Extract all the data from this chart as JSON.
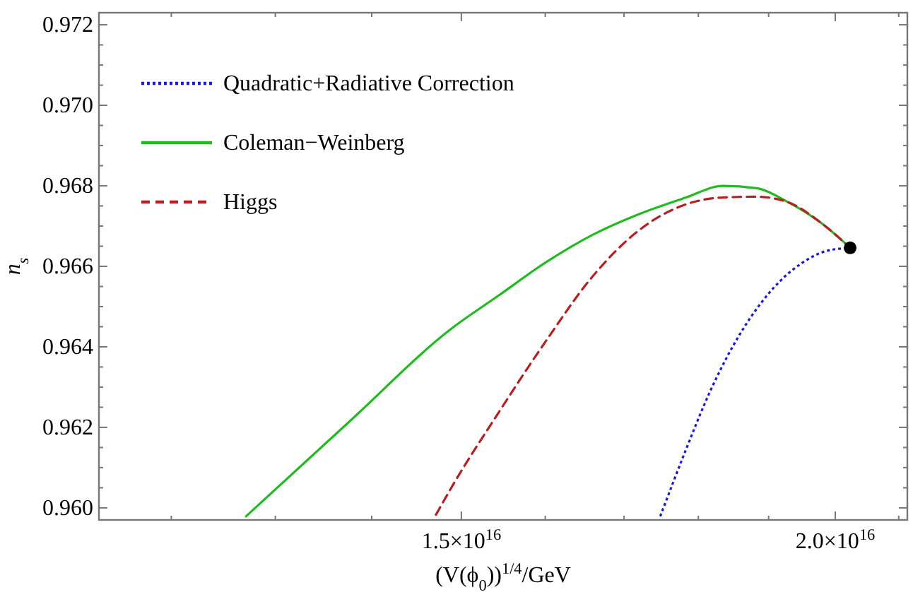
{
  "chart_data": {
    "type": "line",
    "xlabel": "(V(ϕ$_{0}$))$^{1/4}$/GeV",
    "ylabel": "n$_{s}$",
    "log": "x",
    "legend": "top left",
    "grid": false,
    "xlim": [
      1.135e+16,
      2.114e+16
    ],
    "xticks": [
      {
        "value": 1.2e+16,
        "label": null
      },
      {
        "value": 1.3e+16,
        "label": null
      },
      {
        "value": 1.4e+16,
        "label": null
      },
      {
        "value": 1.5e+16,
        "label": "1.5×10$^{16}$"
      },
      {
        "value": 1.6e+16,
        "label": null
      },
      {
        "value": 1.7e+16,
        "label": null
      },
      {
        "value": 1.8e+16,
        "label": null
      },
      {
        "value": 1.9e+16,
        "label": null
      },
      {
        "value": 2e+16,
        "label": "2.0×10$^{16}$"
      },
      {
        "value": 2.1e+16,
        "label": null
      }
    ],
    "ylim": [
      0.9597,
      0.9723
    ],
    "yticks": [
      {
        "value": 0.96,
        "label": "0.960"
      },
      {
        "value": 0.9605,
        "label": null
      },
      {
        "value": 0.961,
        "label": null
      },
      {
        "value": 0.9615,
        "label": null
      },
      {
        "value": 0.962,
        "label": "0.962"
      },
      {
        "value": 0.9625,
        "label": null
      },
      {
        "value": 0.963,
        "label": null
      },
      {
        "value": 0.9635,
        "label": null
      },
      {
        "value": 0.964,
        "label": "0.964"
      },
      {
        "value": 0.9645,
        "label": null
      },
      {
        "value": 0.965,
        "label": null
      },
      {
        "value": 0.9655,
        "label": null
      },
      {
        "value": 0.966,
        "label": "0.966"
      },
      {
        "value": 0.9665,
        "label": null
      },
      {
        "value": 0.967,
        "label": null
      },
      {
        "value": 0.9675,
        "label": null
      },
      {
        "value": 0.968,
        "label": "0.968"
      },
      {
        "value": 0.9685,
        "label": null
      },
      {
        "value": 0.969,
        "label": null
      },
      {
        "value": 0.9695,
        "label": null
      },
      {
        "value": 0.97,
        "label": "0.970"
      },
      {
        "value": 0.9705,
        "label": null
      },
      {
        "value": 0.971,
        "label": null
      },
      {
        "value": 0.9715,
        "label": null
      },
      {
        "value": 0.972,
        "label": "0.972"
      }
    ],
    "series": [
      {
        "name": "Quadratic+Radiative Correction",
        "color": "#1a1acc",
        "line_style": "dotted",
        "x": [
          1.748e+16,
          1.783e+16,
          1.815e+16,
          1.848e+16,
          1.882e+16,
          1.916e+16,
          1.95e+16,
          1.986e+16,
          2.023e+16
        ],
        "values": [
          0.95979,
          0.96145,
          0.96284,
          0.964,
          0.96493,
          0.96562,
          0.96609,
          0.96638,
          0.96646
        ]
      },
      {
        "name": "Coleman−Weinberg",
        "color": "#22b922",
        "line_style": "solid",
        "x": [
          1.271e+16,
          1.376e+16,
          1.489e+16,
          1.544e+16,
          1.6e+16,
          1.659e+16,
          1.72e+16,
          1.783e+16,
          1.834e+16,
          1.882e+16,
          1.929e+16,
          1.979e+16,
          2.023e+16
        ],
        "values": [
          0.95979,
          0.96214,
          0.96446,
          0.96528,
          0.96609,
          0.96678,
          0.9673,
          0.96771,
          0.968,
          0.96794,
          0.96759,
          0.96707,
          0.96646
        ]
      },
      {
        "name": "Higgs",
        "color": "#b22222",
        "line_style": "dashed",
        "x": [
          1.471e+16,
          1.489e+16,
          1.544e+16,
          1.6e+16,
          1.659e+16,
          1.72e+16,
          1.783e+16,
          1.834e+16,
          1.882e+16,
          1.929e+16,
          1.979e+16,
          2.023e+16
        ],
        "values": [
          0.95983,
          0.96052,
          0.96238,
          0.96412,
          0.96574,
          0.9669,
          0.96754,
          0.96771,
          0.96773,
          0.96759,
          0.96707,
          0.96646
        ]
      },
      {
        "type": "scatter",
        "marker": "circle",
        "color": "#000000",
        "x": [
          2.023e+16
        ],
        "values": [
          0.96646
        ]
      }
    ]
  }
}
